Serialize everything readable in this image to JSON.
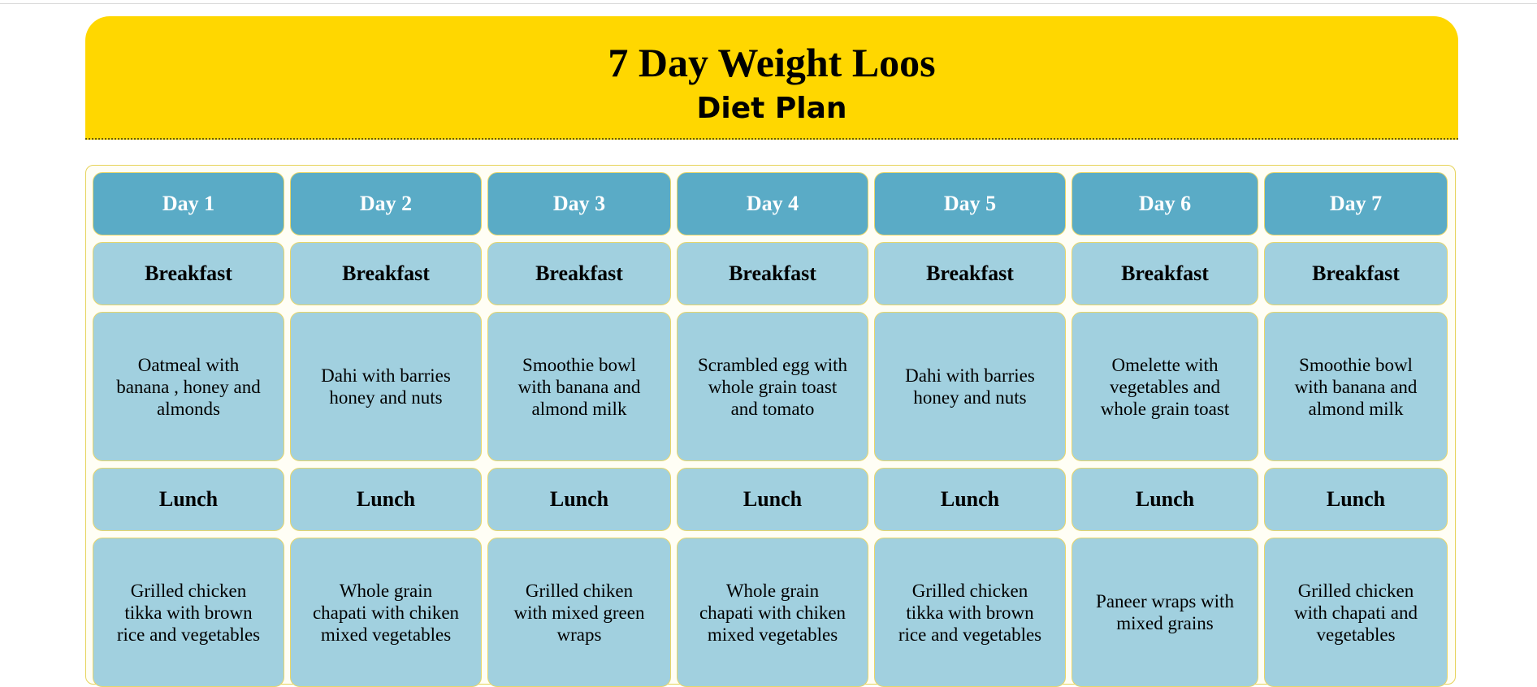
{
  "header": {
    "title": "7 Day Weight Loos",
    "subtitle": "Diet Plan"
  },
  "days": [
    {
      "label": "Day 1",
      "breakfast_label": "Breakfast",
      "breakfast": "Oatmeal with banana , honey and almonds",
      "lunch_label": "Lunch",
      "lunch": "Grilled chicken tikka with brown rice and vegetables"
    },
    {
      "label": "Day 2",
      "breakfast_label": "Breakfast",
      "breakfast": "Dahi with barries honey and nuts",
      "lunch_label": "Lunch",
      "lunch": "Whole grain chapati with chiken mixed vegetables"
    },
    {
      "label": "Day 3",
      "breakfast_label": "Breakfast",
      "breakfast": "Smoothie bowl with banana and almond milk",
      "lunch_label": "Lunch",
      "lunch": "Grilled chiken with mixed green wraps"
    },
    {
      "label": "Day 4",
      "breakfast_label": "Breakfast",
      "breakfast": "Scrambled egg with whole grain toast and tomato",
      "lunch_label": "Lunch",
      "lunch": "Whole grain chapati with chiken mixed vegetables"
    },
    {
      "label": "Day 5",
      "breakfast_label": "Breakfast",
      "breakfast": "Dahi with barries honey and nuts",
      "lunch_label": "Lunch",
      "lunch": "Grilled chicken tikka with brown rice and vegetables"
    },
    {
      "label": "Day 6",
      "breakfast_label": "Breakfast",
      "breakfast": "Omelette with vegetables and whole grain toast",
      "lunch_label": "Lunch",
      "lunch": "Paneer wraps with mixed grains"
    },
    {
      "label": "Day 7",
      "breakfast_label": "Breakfast",
      "breakfast": "Smoothie bowl with banana and almond milk",
      "lunch_label": "Lunch",
      "lunch": "Grilled chicken with chapati and vegetables"
    }
  ],
  "colors": {
    "header_bg": "#ffd700",
    "day_bg": "#5aabc6",
    "meal_bg": "#a1d0df",
    "cell_border": "#e8d66a"
  }
}
